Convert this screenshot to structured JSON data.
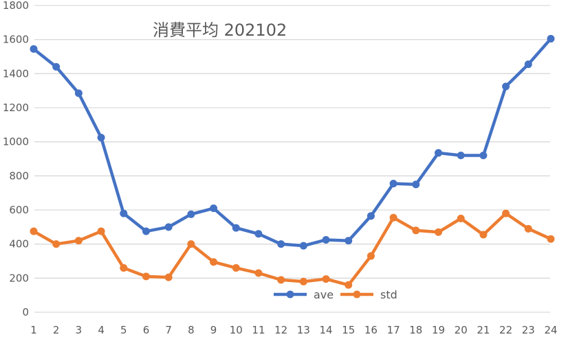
{
  "chart_data": {
    "type": "line",
    "title": "消費平均 202102",
    "xlabel": "",
    "ylabel": "",
    "x": [
      1,
      2,
      3,
      4,
      5,
      6,
      7,
      8,
      9,
      10,
      11,
      12,
      13,
      14,
      15,
      16,
      17,
      18,
      19,
      20,
      21,
      22,
      23,
      24
    ],
    "categories": [
      "1",
      "2",
      "3",
      "4",
      "5",
      "6",
      "7",
      "8",
      "9",
      "10",
      "11",
      "12",
      "13",
      "14",
      "15",
      "16",
      "17",
      "18",
      "19",
      "20",
      "21",
      "22",
      "23",
      "24"
    ],
    "series": [
      {
        "name": "ave",
        "color": "#4472C4",
        "values": [
          1545,
          1440,
          1285,
          1025,
          580,
          475,
          500,
          575,
          610,
          495,
          460,
          400,
          390,
          425,
          420,
          565,
          755,
          750,
          935,
          920,
          920,
          1325,
          1455,
          1605
        ]
      },
      {
        "name": "std",
        "color": "#ED7D31",
        "values": [
          475,
          400,
          420,
          475,
          260,
          210,
          205,
          400,
          295,
          260,
          230,
          190,
          180,
          195,
          160,
          330,
          555,
          480,
          470,
          550,
          455,
          580,
          490,
          430
        ]
      }
    ],
    "ylim": [
      0,
      1800
    ],
    "yticks": [
      0,
      200,
      400,
      600,
      800,
      1000,
      1200,
      1400,
      1600,
      1800
    ],
    "grid": true,
    "legend_position": "inside-bottom-center"
  }
}
